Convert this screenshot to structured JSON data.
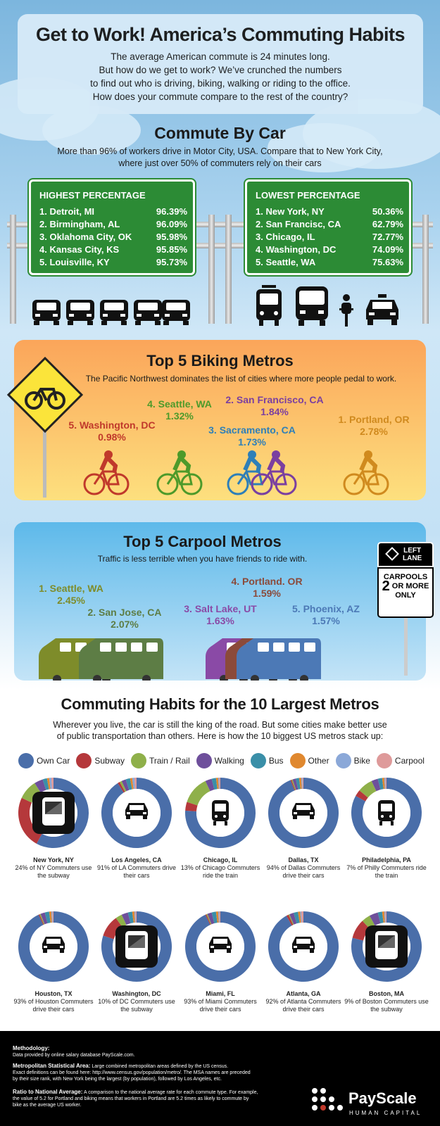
{
  "header": {
    "title": "Get to Work! America’s Commuting Habits",
    "intro": [
      "The average American commute is 24 minutes long.",
      "But how do we get to work? We’ve crunched the numbers",
      "to find out who is driving, biking, walking or riding to the office.",
      "How does your commute compare to the rest of the country?"
    ]
  },
  "car": {
    "title": "Commute By Car",
    "subtitle": [
      "More than 96% of workers drive in Motor City, USA. Compare that to New York City,",
      "where just over 50% of commuters rely on their cars"
    ],
    "highest": {
      "title": "HIGHEST PERCENTAGE",
      "rows": [
        {
          "name": "1. Detroit, MI",
          "value": "96.39%"
        },
        {
          "name": "2. Birmingham, AL",
          "value": "96.09%"
        },
        {
          "name": "3. Oklahoma City, OK",
          "value": "95.98%"
        },
        {
          "name": "4. Kansas City, KS",
          "value": "95.85%"
        },
        {
          "name": "5. Louisville, KY",
          "value": "95.73%"
        }
      ]
    },
    "lowest": {
      "title": "LOWEST PERCENTAGE",
      "rows": [
        {
          "name": "1. New York, NY",
          "value": "50.36%"
        },
        {
          "name": "2. San Francisc, CA",
          "value": "62.79%"
        },
        {
          "name": "3. Chicago, IL",
          "value": "72.77%"
        },
        {
          "name": "4. Washington, DC",
          "value": "74.09%"
        },
        {
          "name": "5. Seattle, WA",
          "value": "75.63%"
        }
      ]
    }
  },
  "biking": {
    "title": "Top 5 Biking Metros",
    "subtitle": "The Pacific Northwest dominates the list of cities where more people pedal to work.",
    "items": [
      {
        "name": "5. Washington, DC",
        "value": "0.98%",
        "color": "#c0392b"
      },
      {
        "name": "4. Seattle, WA",
        "value": "1.32%",
        "color": "#4d9a2a"
      },
      {
        "name": "2. San Francisco, CA",
        "value": "1.84%",
        "color": "#7b3fa0"
      },
      {
        "name": "3. Sacramento, CA",
        "value": "1.73%",
        "color": "#2e7fb8"
      },
      {
        "name": "1. Portland, OR",
        "value": "2.78%",
        "color": "#d08a1e"
      }
    ]
  },
  "carpool": {
    "title": "Top 5 Carpool Metros",
    "subtitle": "Traffic is less terrible when you have friends to ride with.",
    "sign": {
      "top1": "LEFT",
      "top2": "LANE",
      "line1": "CARPOOLS",
      "num": "2",
      "line2": "OR MORE",
      "line3": "ONLY"
    },
    "items": [
      {
        "name": "1. Seattle, WA",
        "value": "2.45%",
        "color": "#7e8c2a"
      },
      {
        "name": "2. San Jose, CA",
        "value": "2.07%",
        "color": "#5d7d45"
      },
      {
        "name": "4. Portland. OR",
        "value": "1.59%",
        "color": "#8b4a3a"
      },
      {
        "name": "3. Salt Lake, UT",
        "value": "1.63%",
        "color": "#8a4aa6"
      },
      {
        "name": "5. Phoenix, AZ",
        "value": "1.57%",
        "color": "#4c79b6"
      }
    ]
  },
  "metros": {
    "title": "Commuting Habits for the 10 Largest Metros",
    "subtitle": [
      "Wherever you live, the car is still the king of the road. But some cities make better use",
      "of public transportation than others. Here is how the 10 biggest US metros stack up:"
    ],
    "legend": [
      {
        "label": "Own Car",
        "color": "#4a6ea9"
      },
      {
        "label": "Subway",
        "color": "#b5383b"
      },
      {
        "label": "Train / Rail",
        "color": "#8fb04a"
      },
      {
        "label": "Walking",
        "color": "#6e4f9b"
      },
      {
        "label": "Bus",
        "color": "#3a8fa8"
      },
      {
        "label": "Other",
        "color": "#e0882f"
      },
      {
        "label": "Bike",
        "color": "#8ba8d8"
      },
      {
        "label": "Carpool",
        "color": "#de9a9a"
      }
    ]
  },
  "chart_data": {
    "type": "pie",
    "categories": [
      "Own Car",
      "Subway",
      "Train / Rail",
      "Walking",
      "Bus",
      "Other",
      "Bike",
      "Carpool"
    ],
    "series": [
      {
        "name": "New York, NY",
        "caption": "24% of NY Commuters use the subway",
        "icon": "subway-icon",
        "values": [
          58,
          24,
          9,
          4,
          2,
          1,
          1,
          1
        ]
      },
      {
        "name": "Los Angeles, CA",
        "caption": "91% of LA Commuters drive their cars",
        "icon": "car-icon",
        "values": [
          91,
          1,
          1,
          2,
          2,
          1,
          1,
          1
        ]
      },
      {
        "name": "Chicago, IL",
        "caption": "13% of Chicago Commuters ride the train",
        "icon": "train-icon",
        "values": [
          76,
          4,
          13,
          3,
          2,
          1,
          0.5,
          0.5
        ]
      },
      {
        "name": "Dallas, TX",
        "caption": "94% of Dallas Commuters drive their cars",
        "icon": "car-icon",
        "values": [
          94,
          0.5,
          0.5,
          1.5,
          1.5,
          1,
          0.5,
          0.5
        ]
      },
      {
        "name": "Philadelphia, PA",
        "caption": "7% of Philly Commuters ride the train",
        "icon": "train-icon",
        "values": [
          83,
          3,
          7,
          3,
          2,
          1,
          0.5,
          0.5
        ]
      },
      {
        "name": "Houston, TX",
        "caption": "93% of Houston Commuters drive their cars",
        "icon": "car-icon",
        "values": [
          93,
          0.5,
          0.5,
          2,
          2,
          1,
          0.5,
          0.5
        ]
      },
      {
        "name": "Washington, DC",
        "caption": "10% of DC Commuters use the subway",
        "icon": "subway-icon",
        "values": [
          80,
          10,
          3,
          3,
          2,
          1,
          0.5,
          0.5
        ]
      },
      {
        "name": "Miami, FL",
        "caption": "93% of Miami Commuters drive their cars",
        "icon": "car-icon",
        "values": [
          93,
          0.5,
          0.5,
          2,
          2,
          1,
          0.5,
          0.5
        ]
      },
      {
        "name": "Atlanta, GA",
        "caption": "92% of Atlanta Commuters drive their cars",
        "icon": "car-icon",
        "values": [
          92,
          1,
          0.5,
          2,
          2,
          1,
          0.5,
          1
        ]
      },
      {
        "name": "Boston, MA",
        "caption": "9% of Boston Commuters use the subway",
        "icon": "subway-icon",
        "values": [
          79,
          9,
          4,
          4,
          2,
          1,
          0.5,
          0.5
        ]
      }
    ]
  },
  "footer": {
    "methodology_title": "Methodology:",
    "methodology": "Data provided by online salary database PayScale.com.",
    "msa_title": "Metropolitan Statistical Area:",
    "msa": "Large combined metropolitan areas defined by the US census.",
    "msa2": "Exact definitions can be found here: http://www.census.gov/population/metro/. The MSA names are preceded",
    "msa3": "by their size rank, with New York being the largest (by population), followed by Los Angeles, etc.",
    "ratio_title": "Ratio to National Average:",
    "ratio": "A comparison to the national average rate for each commute type. For example,",
    "ratio2": "the value of 5.2 for Portland and biking means that workers in Portland are 5.2 times as likely to commute by",
    "ratio3": "bike as the average US worker.",
    "brand": "PayScale",
    "brand_sub": "HUMAN CAPITAL"
  }
}
